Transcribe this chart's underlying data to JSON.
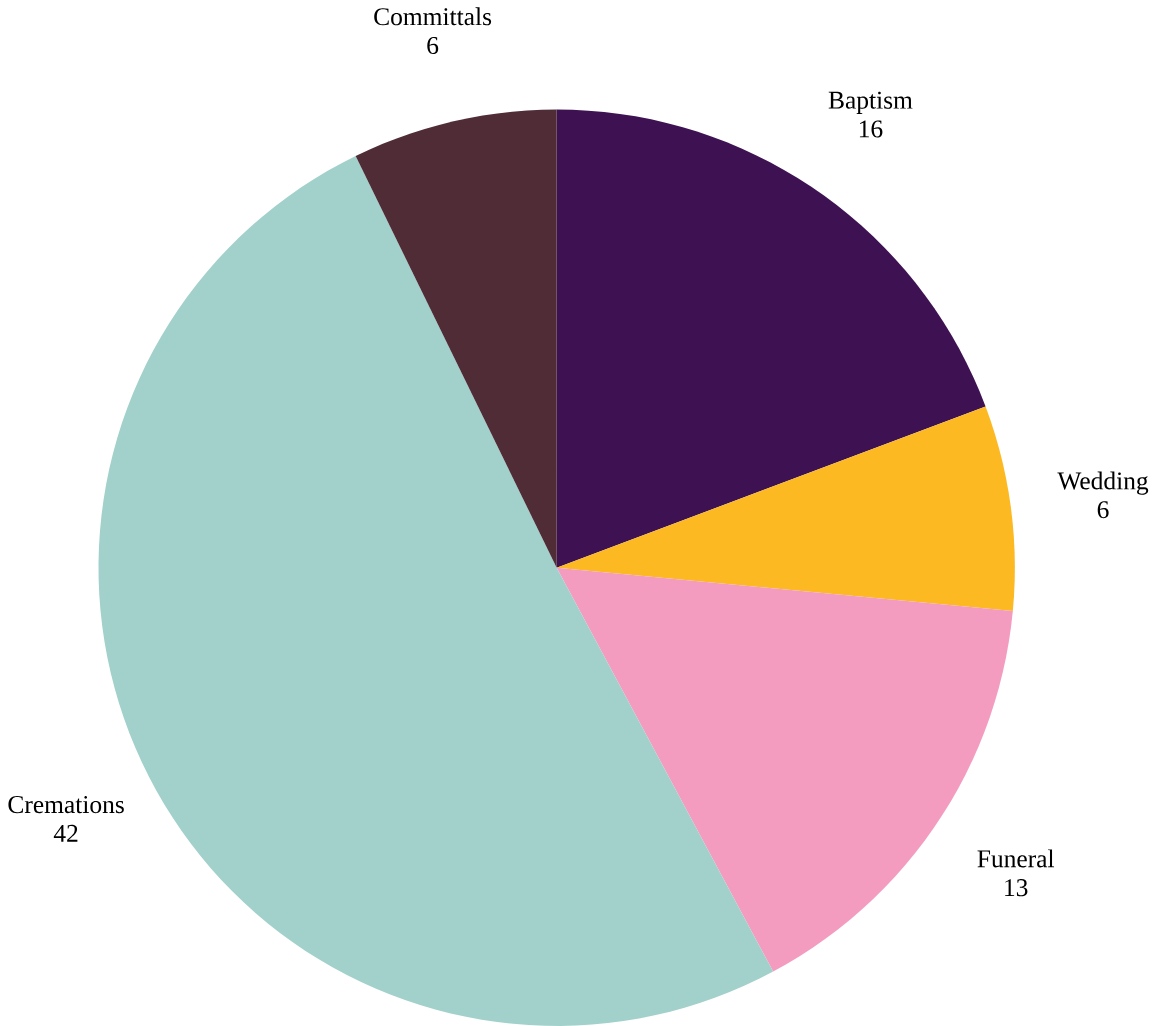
{
  "chart_data": {
    "type": "pie",
    "categories": [
      "Baptism",
      "Wedding",
      "Funeral",
      "Cremations",
      "Committals"
    ],
    "values": [
      16,
      6,
      13,
      42,
      6
    ],
    "colors": [
      "#3d1152",
      "#fdb922",
      "#f49cc0",
      "#a2d1cb",
      "#4f2c36"
    ],
    "data_labels": true
  }
}
